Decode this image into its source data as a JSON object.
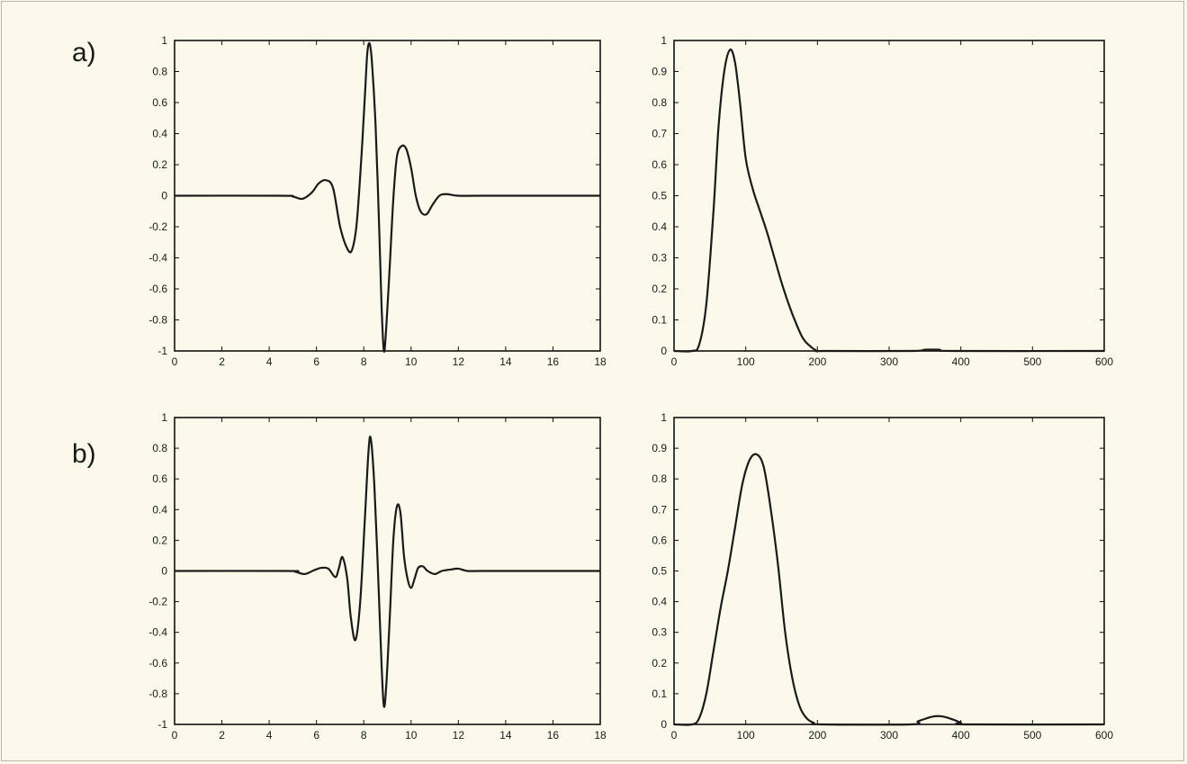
{
  "figure": {
    "panel_labels": [
      "a)",
      "b)"
    ],
    "axis_color": "#111111",
    "line_color": "#1a1a1a",
    "background": "#fbf9ea"
  },
  "chart_data": [
    {
      "type": "line",
      "title": "",
      "xlabel": "",
      "ylabel": "",
      "xlim": [
        0,
        18
      ],
      "ylim": [
        -1,
        1
      ],
      "xticks": [
        0,
        2,
        4,
        6,
        8,
        10,
        12,
        14,
        16,
        18
      ],
      "yticks": [
        1,
        0.8,
        0.6,
        0.4,
        0.2,
        0,
        -0.2,
        -0.4,
        -0.6,
        -0.8,
        -1
      ],
      "xtick_labels": [
        "0",
        "2",
        "4",
        "6",
        "8",
        "10",
        "12",
        "14",
        "16",
        "18"
      ],
      "ytick_labels": [
        "1",
        "0.8",
        "0.6",
        "0.4",
        "0.2",
        "0",
        "-0.2",
        "-0.4",
        "-0.6",
        "-0.8",
        "-1"
      ],
      "series": [
        {
          "x": [
            0,
            4.5,
            5.0,
            5.4,
            5.8,
            6.1,
            6.4,
            6.7,
            7.0,
            7.3,
            7.5,
            7.7,
            7.9,
            8.05,
            8.15,
            8.25,
            8.35,
            8.5,
            8.65,
            8.75,
            8.85,
            8.95,
            9.1,
            9.25,
            9.4,
            9.6,
            9.8,
            10.0,
            10.2,
            10.4,
            10.65,
            10.9,
            11.2,
            11.5,
            12.0,
            13.0,
            18
          ],
          "y": [
            0,
            0,
            -0.005,
            -0.02,
            0.02,
            0.08,
            0.1,
            0.05,
            -0.2,
            -0.34,
            -0.35,
            -0.18,
            0.25,
            0.65,
            0.92,
            0.98,
            0.85,
            0.45,
            -0.2,
            -0.7,
            -1.0,
            -0.85,
            -0.45,
            -0.02,
            0.25,
            0.32,
            0.3,
            0.18,
            0.0,
            -0.1,
            -0.12,
            -0.06,
            0.0,
            0.01,
            0.0,
            0.0,
            0.0
          ]
        }
      ]
    },
    {
      "type": "line",
      "title": "",
      "xlabel": "",
      "ylabel": "",
      "xlim": [
        0,
        600
      ],
      "ylim": [
        0,
        1
      ],
      "xticks": [
        0,
        100,
        200,
        300,
        400,
        500,
        600
      ],
      "yticks": [
        1,
        0.9,
        0.8,
        0.7,
        0.6,
        0.5,
        0.4,
        0.3,
        0.2,
        0.1,
        0
      ],
      "xtick_labels": [
        "0",
        "100",
        "200",
        "300",
        "400",
        "500",
        "600"
      ],
      "ytick_labels": [
        "1",
        "0.9",
        "0.8",
        "0.7",
        "0.6",
        "0.5",
        "0.4",
        "0.3",
        "0.2",
        "0.1",
        "0"
      ],
      "series": [
        {
          "x": [
            0,
            25,
            35,
            45,
            55,
            62,
            70,
            78,
            85,
            92,
            100,
            110,
            120,
            130,
            140,
            150,
            160,
            170,
            180,
            190,
            200,
            210,
            330,
            350,
            370,
            390,
            600
          ],
          "y": [
            0,
            0,
            0.02,
            0.15,
            0.45,
            0.72,
            0.9,
            0.97,
            0.93,
            0.8,
            0.62,
            0.52,
            0.45,
            0.38,
            0.3,
            0.22,
            0.15,
            0.09,
            0.04,
            0.015,
            0.0,
            0.0,
            0.0,
            0.004,
            0.004,
            0.0,
            0.0
          ]
        }
      ]
    },
    {
      "type": "line",
      "title": "",
      "xlabel": "",
      "ylabel": "",
      "xlim": [
        0,
        18
      ],
      "ylim": [
        -1,
        1
      ],
      "xticks": [
        0,
        2,
        4,
        6,
        8,
        10,
        12,
        14,
        16,
        18
      ],
      "yticks": [
        1,
        0.8,
        0.6,
        0.4,
        0.2,
        0,
        -0.2,
        -0.4,
        -0.6,
        -0.8,
        -1
      ],
      "xtick_labels": [
        "0",
        "2",
        "4",
        "6",
        "8",
        "10",
        "12",
        "14",
        "16",
        "18"
      ],
      "ytick_labels": [
        "1",
        "0.8",
        "0.6",
        "0.4",
        "0.2",
        "0",
        "-0.2",
        "-0.4",
        "-0.6",
        "-0.8",
        "-1"
      ],
      "series": [
        {
          "x": [
            0,
            4.8,
            5.1,
            5.5,
            5.9,
            6.2,
            6.5,
            6.8,
            6.95,
            7.1,
            7.3,
            7.45,
            7.65,
            7.85,
            8.05,
            8.2,
            8.3,
            8.45,
            8.6,
            8.75,
            8.85,
            8.95,
            9.1,
            9.25,
            9.4,
            9.55,
            9.7,
            9.85,
            10.0,
            10.15,
            10.3,
            10.5,
            10.7,
            11.0,
            11.3,
            11.7,
            12.0,
            12.4,
            13.0,
            18
          ],
          "y": [
            0,
            0,
            -0.005,
            -0.02,
            0.005,
            0.02,
            0.015,
            -0.04,
            0.02,
            0.09,
            -0.05,
            -0.3,
            -0.45,
            -0.2,
            0.35,
            0.78,
            0.86,
            0.55,
            0.0,
            -0.6,
            -0.88,
            -0.75,
            -0.3,
            0.2,
            0.42,
            0.38,
            0.1,
            -0.05,
            -0.11,
            -0.05,
            0.02,
            0.03,
            0.0,
            -0.02,
            0.0,
            0.01,
            0.015,
            0.0,
            0.0,
            0.0
          ]
        }
      ]
    },
    {
      "type": "line",
      "title": "",
      "xlabel": "",
      "ylabel": "",
      "xlim": [
        0,
        600
      ],
      "ylim": [
        0,
        1
      ],
      "xticks": [
        0,
        100,
        200,
        300,
        400,
        500,
        600
      ],
      "yticks": [
        1,
        0.9,
        0.8,
        0.7,
        0.6,
        0.5,
        0.4,
        0.3,
        0.2,
        0.1,
        0
      ],
      "xtick_labels": [
        "0",
        "100",
        "200",
        "300",
        "400",
        "500",
        "600"
      ],
      "ytick_labels": [
        "1",
        "0.9",
        "0.8",
        "0.7",
        "0.6",
        "0.5",
        "0.4",
        "0.3",
        "0.2",
        "0.1",
        "0"
      ],
      "series": [
        {
          "x": [
            0,
            25,
            35,
            45,
            55,
            65,
            75,
            85,
            95,
            105,
            115,
            125,
            135,
            145,
            155,
            165,
            175,
            185,
            195,
            205,
            330,
            340,
            350,
            360,
            370,
            380,
            390,
            400,
            410,
            600
          ],
          "y": [
            0,
            0,
            0.02,
            0.1,
            0.24,
            0.38,
            0.5,
            0.64,
            0.78,
            0.86,
            0.88,
            0.84,
            0.7,
            0.52,
            0.3,
            0.15,
            0.06,
            0.02,
            0.005,
            0.0,
            0.0,
            0.01,
            0.018,
            0.025,
            0.027,
            0.023,
            0.015,
            0.006,
            0.0,
            0.0
          ]
        }
      ]
    }
  ]
}
